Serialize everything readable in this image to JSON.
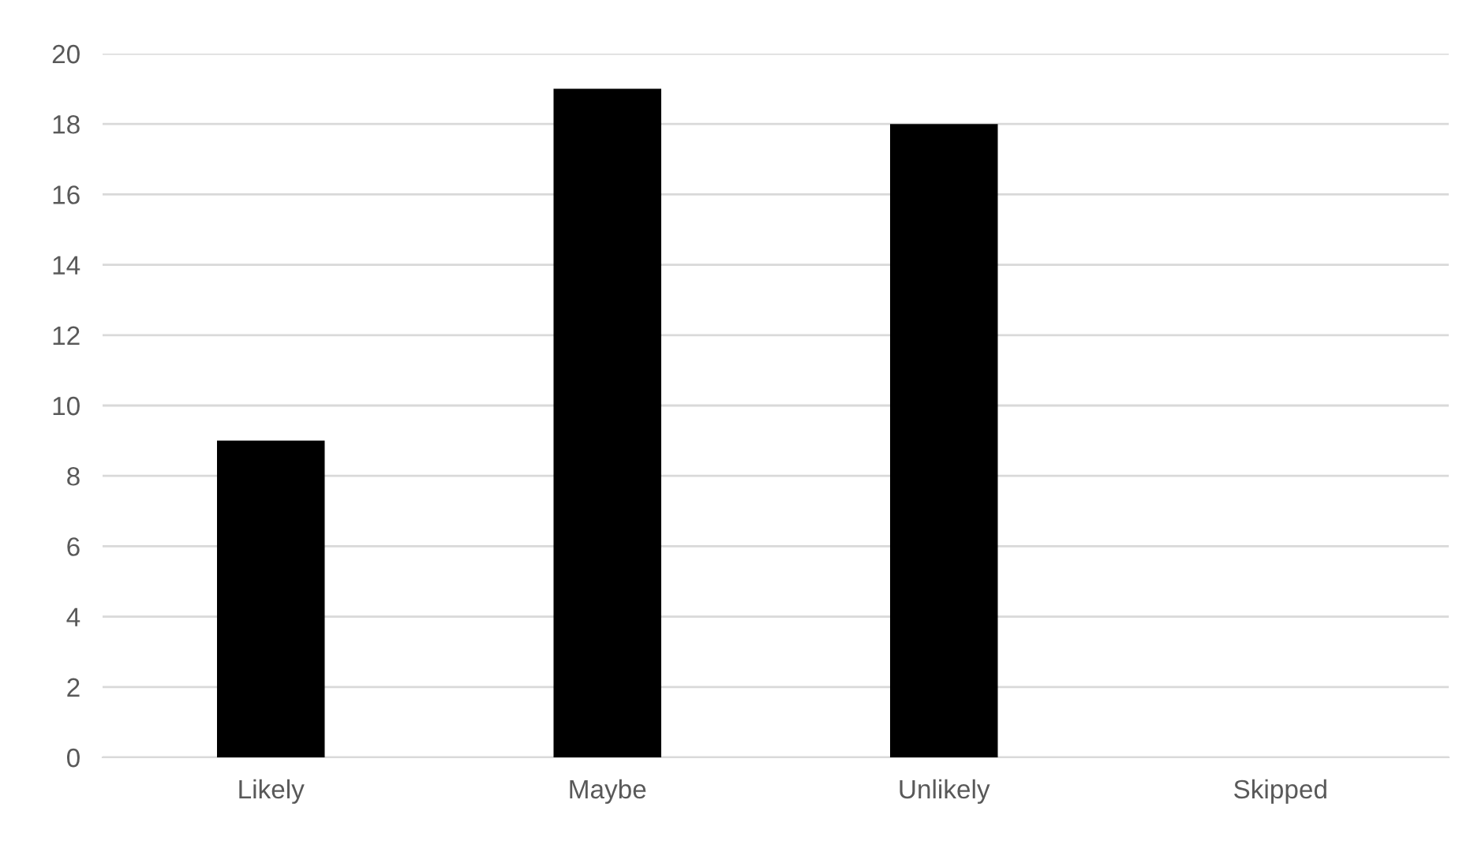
{
  "chart_data": {
    "type": "bar",
    "categories": [
      "Likely",
      "Maybe",
      "Unlikely",
      "Skipped"
    ],
    "values": [
      9,
      19,
      18,
      0
    ],
    "color": "#000000",
    "ylim": [
      0,
      20
    ],
    "yticks": [
      0,
      2,
      4,
      6,
      8,
      10,
      12,
      14,
      16,
      18,
      20
    ],
    "grid": "y"
  }
}
